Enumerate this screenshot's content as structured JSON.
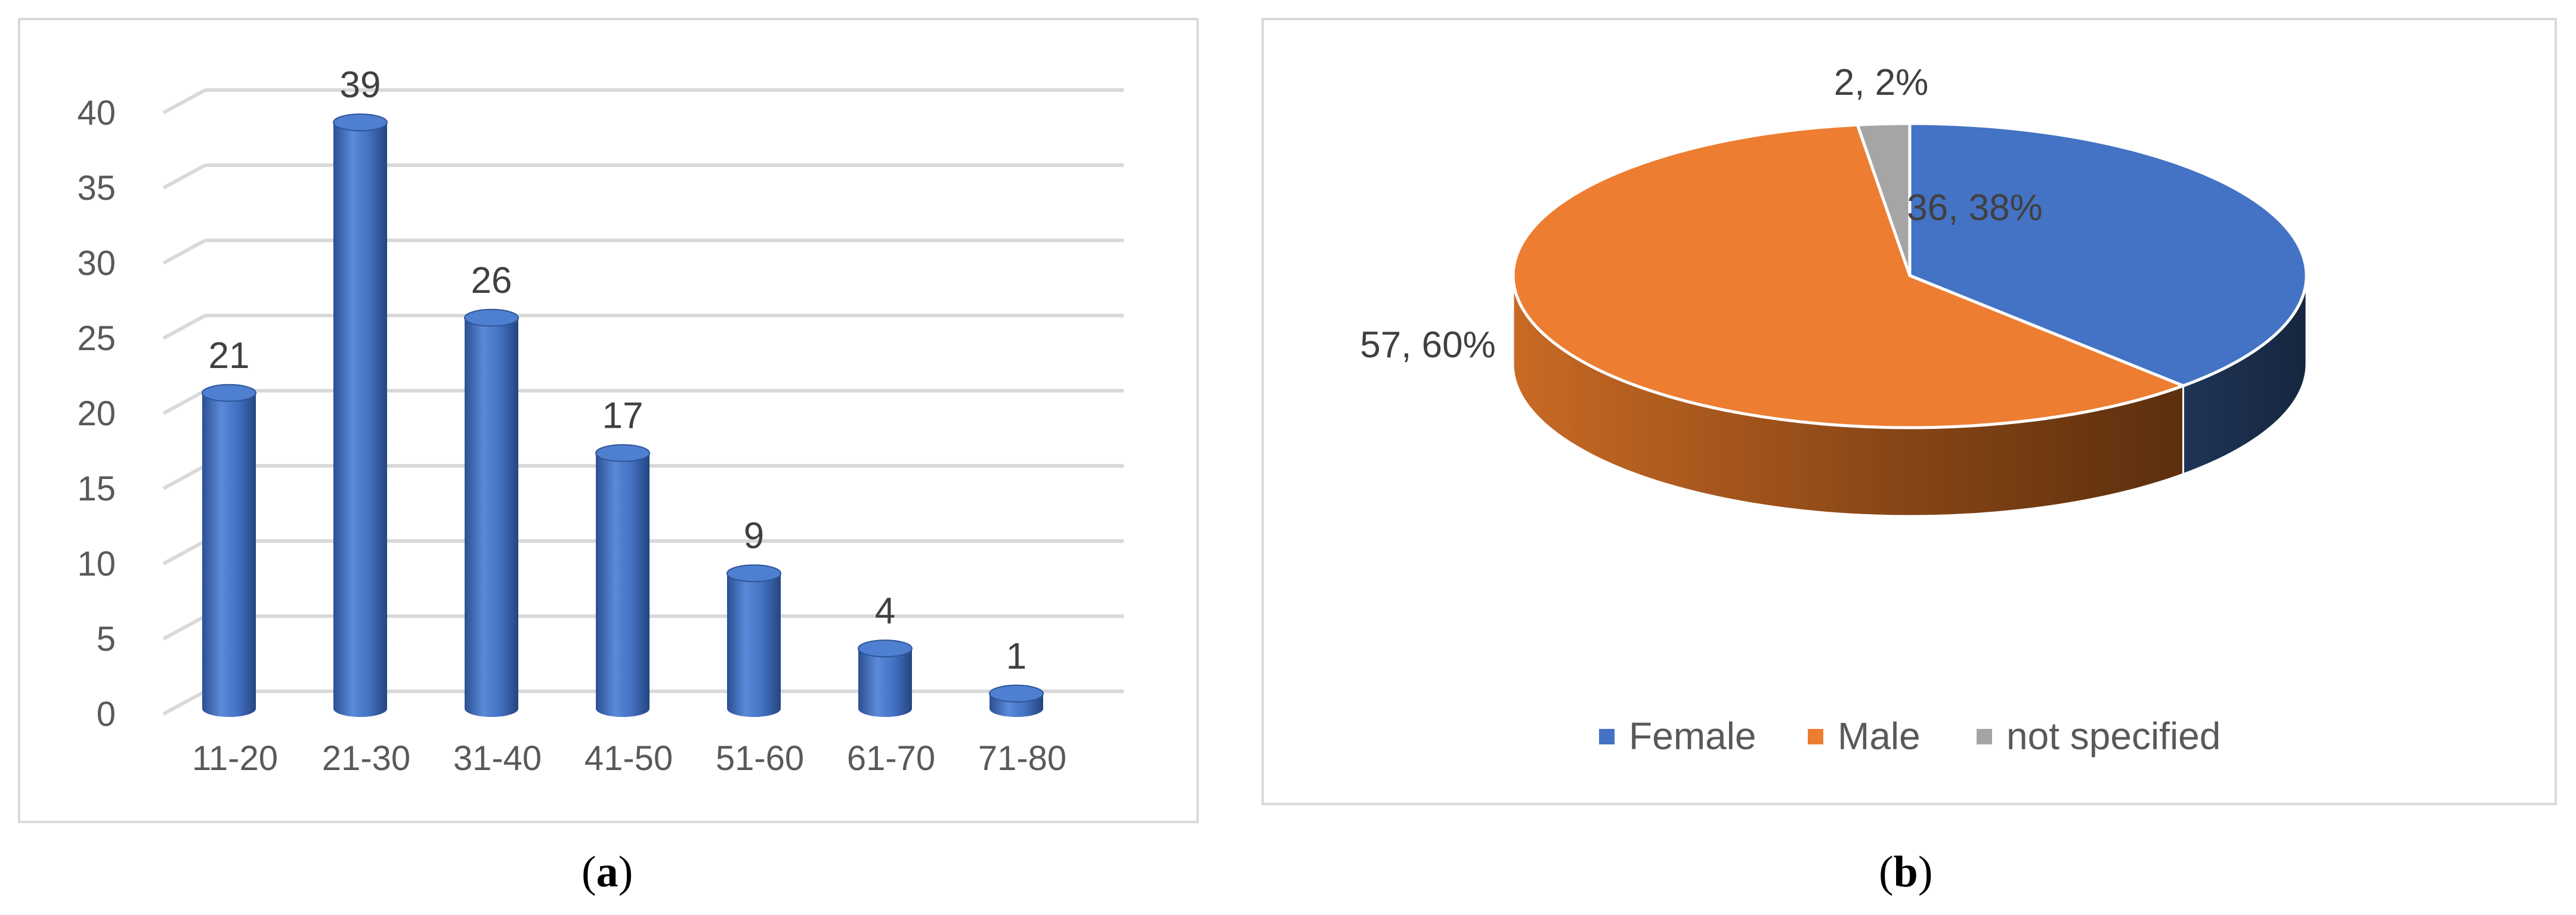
{
  "chart_data": [
    {
      "type": "bar",
      "categories": [
        "11-20",
        "21-30",
        "31-40",
        "41-50",
        "51-60",
        "61-70",
        "71-80"
      ],
      "values": [
        21,
        39,
        26,
        17,
        9,
        4,
        1
      ],
      "ylim": [
        0,
        40
      ],
      "yticks": [
        0,
        5,
        10,
        15,
        20,
        25,
        30,
        35,
        40
      ],
      "grid": true,
      "color": "#4472C4"
    },
    {
      "type": "pie",
      "labels": [
        "Female",
        "Male",
        "not specified"
      ],
      "values": [
        36,
        57,
        2
      ],
      "percents": [
        "38%",
        "60%",
        "2%"
      ],
      "data_labels": [
        "36, 38%",
        "57, 60%",
        "2, 2%"
      ],
      "colors": [
        "#4472C4",
        "#ED7D31",
        "#A5A5A5"
      ],
      "legend": "bottom"
    }
  ],
  "captions": {
    "a_letter": "a",
    "b_letter": "b"
  }
}
